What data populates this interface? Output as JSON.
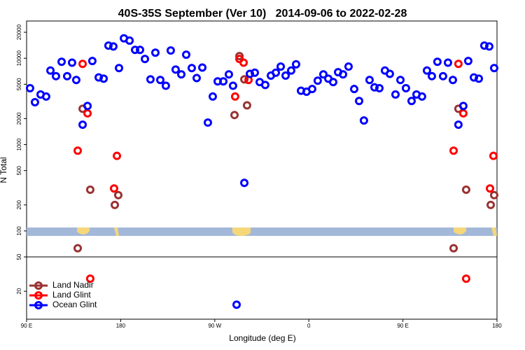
{
  "chart_data": {
    "type": "scatter",
    "title": "40S-35S September (Ver 10)   2014-09-06 to 2022-02-28",
    "xlabel": "Longitude (deg E)",
    "ylabel": "N Total",
    "xlim": [
      90,
      540
    ],
    "xticks": [
      {
        "value": 90,
        "label": "90 E"
      },
      180,
      {
        "value": 270,
        "label": "90 W"
      },
      {
        "value": 360,
        "label": "0"
      },
      {
        "value": 450,
        "label": "90 E"
      },
      {
        "value": 540,
        "label": "180"
      }
    ],
    "ylim": [
      9.5,
      27000
    ],
    "log_y": true,
    "yticks": [
      20,
      50,
      100,
      200,
      500,
      1000,
      2000,
      5000,
      10000,
      20000
    ],
    "hline": 50,
    "legend": "lower left",
    "series": [
      {
        "name": "Land Nadir",
        "color": "#993333",
        "x": [
          143.6,
          150.9,
          174.4,
          177.7,
          138.9,
          288.9,
          293.6,
          298.3,
          300.9,
          503.1,
          510.5,
          534,
          537.3,
          498.5
        ],
        "values": [
          2600,
          300,
          200,
          260,
          63,
          2200,
          10600,
          5700,
          2850,
          2600,
          300,
          200,
          260,
          63
        ]
      },
      {
        "name": "Land Glint",
        "color": "#ff0000",
        "x": [
          138.9,
          143.6,
          148.3,
          173.7,
          176.4,
          289.5,
          293.6,
          297.6,
          302.3,
          498.5,
          503.1,
          507.8,
          533.3,
          536.6,
          150.9,
          510.5
        ],
        "values": [
          850,
          8600,
          2300,
          310,
          740,
          3600,
          9800,
          8900,
          5600,
          850,
          8600,
          2300,
          310,
          740,
          28,
          28
        ]
      },
      {
        "name": "Ocean Glint",
        "color": "#0000ff",
        "x": [
          93.3,
          98,
          103.4,
          108.7,
          112.8,
          118.1,
          123.5,
          128.8,
          133.5,
          137.5,
          143.6,
          148.3,
          152.9,
          159,
          163.7,
          168.3,
          173,
          178.4,
          183.1,
          188.5,
          193.8,
          198.5,
          203.2,
          208.5,
          213.2,
          217.9,
          223.2,
          227.9,
          232.6,
          238,
          242.7,
          248,
          252.7,
          258.1,
          263.4,
          268.1,
          272.8,
          278.2,
          283.5,
          287.5,
          298.3,
          303.6,
          308.3,
          313,
          318.3,
          323.7,
          328.4,
          333.1,
          337.8,
          343.1,
          347.8,
          352.5,
          357.8,
          363.2,
          368.5,
          373.9,
          378.6,
          383.3,
          388,
          392.7,
          398,
          403.4,
          408.1,
          412.7,
          418.1,
          422.8,
          427.5,
          432.8,
          437.5,
          442.9,
          447.6,
          452.9,
          458.3,
          463,
          468.3,
          473,
          477.7,
          483,
          488.4,
          493.1,
          497.8,
          503.1,
          507.8,
          512.5,
          517.9,
          522.6,
          527.9,
          532.6,
          537.3,
          290.9
        ],
        "values": [
          4500,
          3100,
          3800,
          3600,
          7200,
          6200,
          9100,
          6200,
          8900,
          5600,
          1700,
          2800,
          9300,
          6000,
          5800,
          14000,
          13700,
          7700,
          17000,
          16000,
          12500,
          12500,
          9800,
          5700,
          11600,
          5600,
          4800,
          12300,
          7400,
          6500,
          11000,
          7700,
          5900,
          7800,
          1800,
          3600,
          5400,
          5400,
          6500,
          4800,
          360,
          6600,
          6800,
          5300,
          4900,
          6300,
          6800,
          8000,
          6300,
          7200,
          8500,
          4200,
          4100,
          4400,
          5500,
          6500,
          5800,
          5300,
          6900,
          6500,
          8000,
          4400,
          3200,
          1900,
          5600,
          4600,
          4500,
          7200,
          6600,
          3800,
          5600,
          4500,
          3200,
          3800,
          3600,
          7200,
          6200,
          9100,
          6200,
          8900,
          5600,
          1700,
          2800,
          9300,
          6000,
          5800,
          14000,
          13700,
          7700,
          14
        ]
      }
    ]
  }
}
